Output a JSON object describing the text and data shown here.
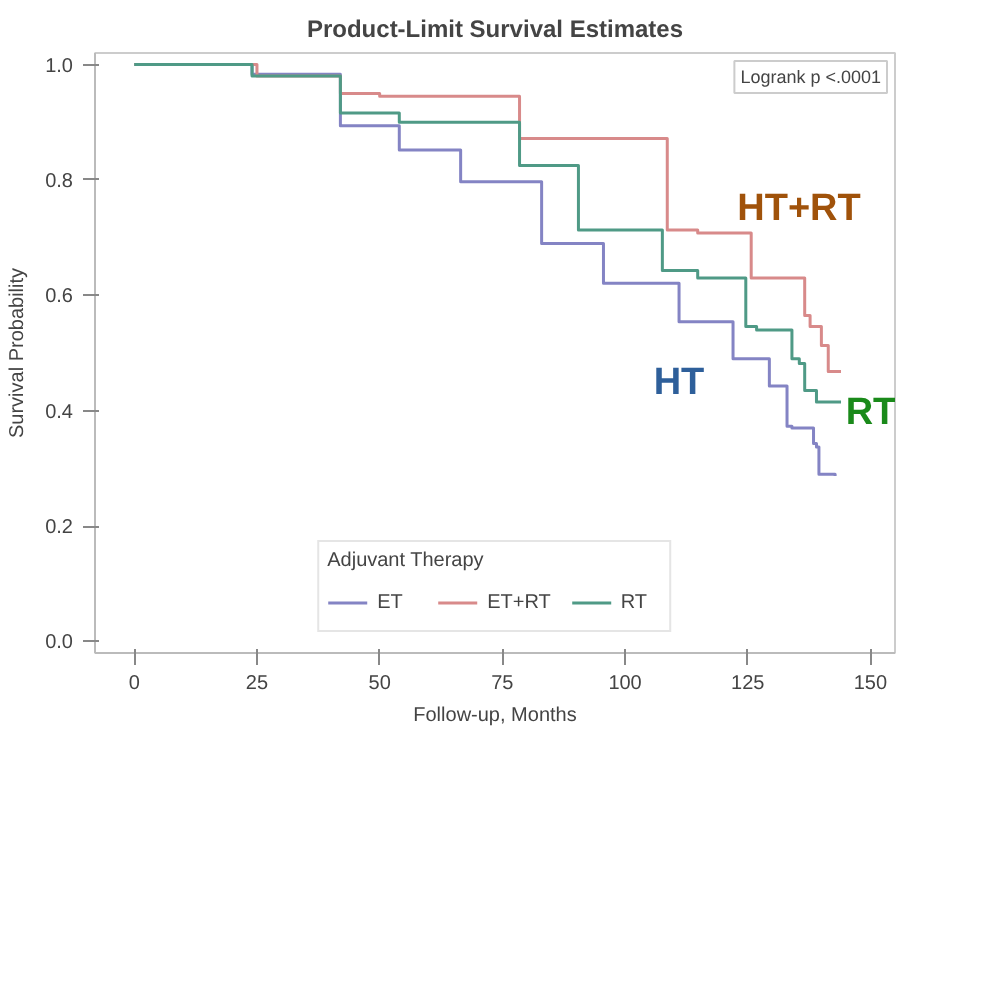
{
  "chart_data": {
    "type": "step",
    "title": "Product-Limit Survival Estimates",
    "xlabel": "Follow-up, Months",
    "ylabel": "Survival Probability",
    "legend_title": "Adjuvant Therapy",
    "xlim": [
      -8,
      155
    ],
    "ylim": [
      -0.02,
      1.02
    ],
    "xticks": [
      0,
      25,
      50,
      75,
      100,
      125,
      150
    ],
    "yticks": [
      {
        "value": 0,
        "label": "0.0"
      },
      {
        "value": 0.2,
        "label": "0.2"
      },
      {
        "value": 0.4,
        "label": "0.4"
      },
      {
        "value": 0.6,
        "label": "0.6"
      },
      {
        "value": 0.8,
        "label": "0.8"
      },
      {
        "value": 1,
        "label": "1.0"
      }
    ],
    "grid": false,
    "legend": "bottom",
    "marker": "none",
    "line_style": "solid",
    "series": [
      {
        "name": "ET",
        "color": "#8484c4",
        "x": [
          0,
          12,
          24,
          42,
          54,
          66.5,
          83,
          95.6,
          111,
          122,
          129.4,
          133,
          134,
          138.4,
          139,
          139.5,
          142.8
        ],
        "values": [
          1,
          1,
          0.983,
          0.894,
          0.852,
          0.797,
          0.69,
          0.621,
          0.554,
          0.49,
          0.443,
          0.373,
          0.37,
          0.343,
          0.337,
          0.29,
          0.287
        ]
      },
      {
        "name": "ET+RT",
        "color": "#d88a8a",
        "x": [
          0,
          12,
          25,
          42,
          50,
          78.5,
          108.6,
          114.8,
          125.7,
          136.6,
          137.7,
          140,
          141.4,
          144
        ],
        "values": [
          1,
          1,
          0.98,
          0.95,
          0.945,
          0.872,
          0.713,
          0.708,
          0.63,
          0.565,
          0.546,
          0.513,
          0.468,
          0.468
        ]
      },
      {
        "name": "RT",
        "color": "#4f9a86",
        "x": [
          0,
          12,
          24,
          42,
          54,
          78.5,
          90.5,
          107.6,
          114.8,
          124.6,
          126.8,
          134,
          135.5,
          136.6,
          139,
          144
        ],
        "values": [
          1,
          1,
          0.98,
          0.916,
          0.9,
          0.825,
          0.713,
          0.643,
          0.63,
          0.546,
          0.54,
          0.49,
          0.482,
          0.435,
          0.415,
          0.415
        ]
      }
    ],
    "annotations": [
      "Logrank p <.0001",
      "HT+RT",
      "HT",
      "RT"
    ]
  }
}
